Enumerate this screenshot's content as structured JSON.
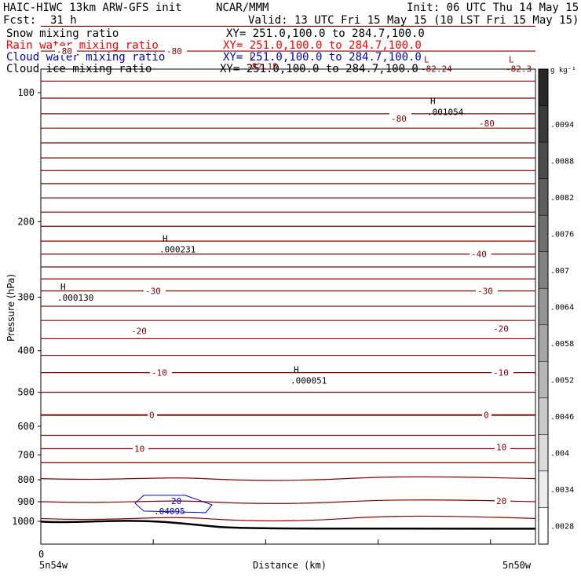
{
  "header": {
    "model": "HAIC-HIWC 13km ARW-GFS init",
    "org": "NCAR/MMM",
    "init": "Init: 06 UTC Thu 14 May 15",
    "fcst_label": "Fcst:",
    "fcst_value": "31 h",
    "valid": "Valid: 13 UTC Fri 15 May 15 (10 LST Fri 15 May 15)"
  },
  "fields": [
    {
      "name": "Snow mixing ratio",
      "xy": "XY= 251.0,100.0 to 284.7,100.0",
      "color": "#000000"
    },
    {
      "name": "Rain water mixing ratio",
      "xy": "XY= 251.0,100.0 to 284.7,100.0",
      "color": "#ff0000"
    },
    {
      "name": "Cloud water mixing ratio",
      "xy": "XY= 251.0,100.0 to 284.7,100.0",
      "color": "#0000cc"
    },
    {
      "name": "Cloud ice mixing ratio",
      "xy": "XY= 251.0,100.0 to 284.7,100.0",
      "color": "#000000"
    }
  ],
  "chart_data": {
    "type": "line",
    "xlabel": "Distance (km)",
    "ylabel": "Pressure (hPa)",
    "x_ticks": [
      0
    ],
    "x_left_label": "5n54w",
    "x_right_label": "5n50w",
    "y_ticks": [
      100,
      200,
      300,
      400,
      500,
      600,
      700,
      800,
      900,
      1000
    ],
    "ylim": [
      1050,
      55
    ],
    "y_scale": "log-pressure",
    "isotherm_color": "#8b0000",
    "isotherm_labels": [
      {
        "text": "-80",
        "p": 80
      },
      {
        "text": "-80",
        "p": 80
      },
      {
        "text": "-80",
        "p": 115
      },
      {
        "text": "-80",
        "p": 118
      },
      {
        "text": "-40",
        "p": 238
      },
      {
        "text": "-30",
        "p": 290
      },
      {
        "text": "-30",
        "p": 290
      },
      {
        "text": "-20",
        "p": 360
      },
      {
        "text": "-20",
        "p": 355
      },
      {
        "text": "-10",
        "p": 450
      },
      {
        "text": "-10",
        "p": 450
      },
      {
        "text": "0",
        "p": 565
      },
      {
        "text": "0",
        "p": 565
      },
      {
        "text": "10",
        "p": 677
      },
      {
        "text": "10",
        "p": 672
      },
      {
        "text": "20",
        "p": 897
      }
    ],
    "extrema": [
      {
        "mark": "L",
        "value": "-82.15",
        "p": 84
      },
      {
        "mark": "L",
        "value": "-82.24",
        "p": 85
      },
      {
        "mark": "L",
        "value": "-82.3",
        "p": 85
      },
      {
        "mark": "H",
        "value": ".001054",
        "p": 110
      },
      {
        "mark": "H",
        "value": ".000231",
        "p": 230
      },
      {
        "mark": "H",
        "value": ".000130",
        "p": 298
      },
      {
        "mark": "H",
        "value": ".000051",
        "p": 465
      }
    ],
    "cloud_water": {
      "label": ".04095",
      "contour_label": "20",
      "p": 915,
      "color": "#0000cc"
    },
    "colorbar": {
      "unit": "g kg⁻¹",
      "ticks": [
        ".0094",
        ".0088",
        ".0082",
        ".0076",
        ".007",
        ".0064",
        ".0058",
        ".0052",
        ".0046",
        ".004",
        ".0034",
        ".0028"
      ]
    }
  }
}
